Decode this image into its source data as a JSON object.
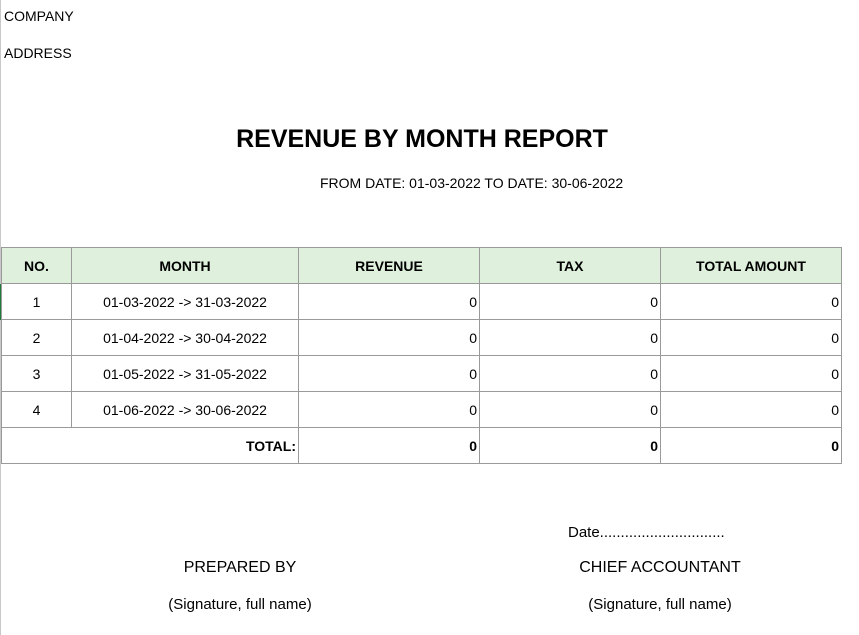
{
  "header": {
    "company": "COMPANY",
    "address": "ADDRESS"
  },
  "report": {
    "title": "REVENUE BY MONTH REPORT",
    "date_range": "FROM DATE: 01-03-2022 TO DATE: 30-06-2022"
  },
  "table": {
    "columns": [
      "NO.",
      "MONTH",
      "REVENUE",
      "TAX",
      "TOTAL AMOUNT"
    ],
    "rows": [
      {
        "no": "1",
        "month": "01-03-2022 -> 31-03-2022",
        "revenue": "0",
        "tax": "0",
        "total": "0"
      },
      {
        "no": "2",
        "month": "01-04-2022 -> 30-04-2022",
        "revenue": "0",
        "tax": "0",
        "total": "0"
      },
      {
        "no": "3",
        "month": "01-05-2022 -> 31-05-2022",
        "revenue": "0",
        "tax": "0",
        "total": "0"
      },
      {
        "no": "4",
        "month": "01-06-2022 -> 30-06-2022",
        "revenue": "0",
        "tax": "0",
        "total": "0"
      }
    ],
    "total": {
      "label": "TOTAL:",
      "revenue": "0",
      "tax": "0",
      "total": "0"
    }
  },
  "footer": {
    "date_line": "Date..............................",
    "prepared_by": "PREPARED BY",
    "prepared_sub": "(Signature, full name)",
    "chief_accountant": "CHIEF ACCOUNTANT",
    "chief_sub": "(Signature, full name)"
  }
}
